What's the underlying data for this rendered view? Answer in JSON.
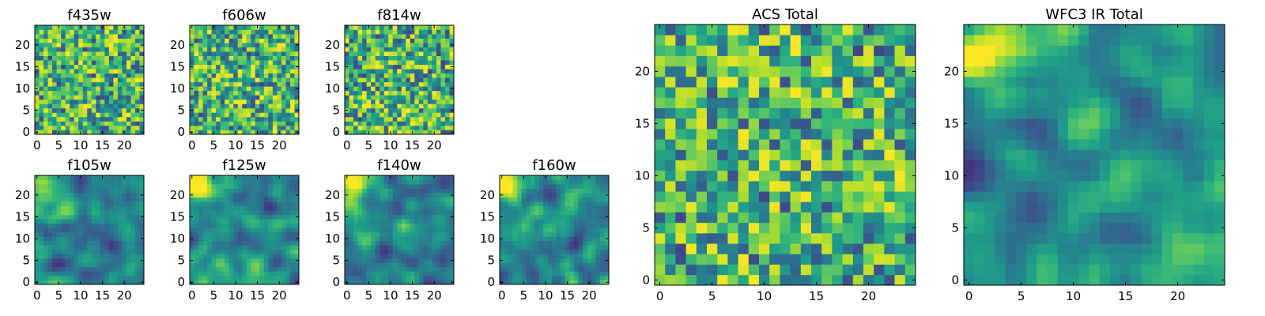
{
  "chart_data": [
    {
      "type": "heatmap",
      "title": "f435w",
      "xticks": [
        "0",
        "5",
        "10",
        "15",
        "20"
      ],
      "yticks": [
        "0",
        "5",
        "10",
        "15",
        "20"
      ],
      "xlim": [
        -0.5,
        24.5
      ],
      "ylim": [
        -0.5,
        24.5
      ],
      "origin": "lower",
      "colormap": "viridis",
      "texture": "noisy"
    },
    {
      "type": "heatmap",
      "title": "f606w",
      "xticks": [
        "0",
        "5",
        "10",
        "15",
        "20"
      ],
      "yticks": [
        "0",
        "5",
        "10",
        "15",
        "20"
      ],
      "xlim": [
        -0.5,
        24.5
      ],
      "ylim": [
        -0.5,
        24.5
      ],
      "origin": "lower",
      "colormap": "viridis",
      "texture": "noisy"
    },
    {
      "type": "heatmap",
      "title": "f814w",
      "xticks": [
        "0",
        "5",
        "10",
        "15",
        "20"
      ],
      "yticks": [
        "0",
        "5",
        "10",
        "15",
        "20"
      ],
      "xlim": [
        -0.5,
        24.5
      ],
      "ylim": [
        -0.5,
        24.5
      ],
      "origin": "lower",
      "colormap": "viridis",
      "texture": "noisy"
    },
    {
      "type": "heatmap",
      "title": "f105w",
      "xticks": [
        "0",
        "5",
        "10",
        "15",
        "20"
      ],
      "yticks": [
        "0",
        "5",
        "10",
        "15",
        "20"
      ],
      "xlim": [
        -0.5,
        24.5
      ],
      "ylim": [
        -0.5,
        24.5
      ],
      "origin": "lower",
      "colormap": "viridis",
      "texture": "smooth"
    },
    {
      "type": "heatmap",
      "title": "f125w",
      "xticks": [
        "0",
        "5",
        "10",
        "15",
        "20"
      ],
      "yticks": [
        "0",
        "5",
        "10",
        "15",
        "20"
      ],
      "xlim": [
        -0.5,
        24.5
      ],
      "ylim": [
        -0.5,
        24.5
      ],
      "origin": "lower",
      "colormap": "viridis",
      "texture": "smooth"
    },
    {
      "type": "heatmap",
      "title": "f140w",
      "xticks": [
        "0",
        "5",
        "10",
        "15",
        "20"
      ],
      "yticks": [
        "0",
        "5",
        "10",
        "15",
        "20"
      ],
      "xlim": [
        -0.5,
        24.5
      ],
      "ylim": [
        -0.5,
        24.5
      ],
      "origin": "lower",
      "colormap": "viridis",
      "texture": "smooth"
    },
    {
      "type": "heatmap",
      "title": "f160w",
      "xticks": [
        "0",
        "5",
        "10",
        "15",
        "20"
      ],
      "yticks": [
        "0",
        "5",
        "10",
        "15",
        "20"
      ],
      "xlim": [
        -0.5,
        24.5
      ],
      "ylim": [
        -0.5,
        24.5
      ],
      "origin": "lower",
      "colormap": "viridis",
      "texture": "smooth"
    },
    {
      "type": "heatmap",
      "title": "ACS Total",
      "xticks": [
        "0",
        "5",
        "10",
        "15",
        "20"
      ],
      "yticks": [
        "0",
        "5",
        "10",
        "15",
        "20"
      ],
      "xlim": [
        -0.5,
        24.5
      ],
      "ylim": [
        -0.5,
        24.5
      ],
      "origin": "lower",
      "colormap": "viridis",
      "texture": "noisy"
    },
    {
      "type": "heatmap",
      "title": "WFC3 IR Total",
      "xticks": [
        "0",
        "5",
        "10",
        "15",
        "20"
      ],
      "yticks": [
        "0",
        "5",
        "10",
        "15",
        "20"
      ],
      "xlim": [
        -0.5,
        24.5
      ],
      "ylim": [
        -0.5,
        24.5
      ],
      "origin": "lower",
      "colormap": "viridis",
      "texture": "smooth"
    }
  ]
}
